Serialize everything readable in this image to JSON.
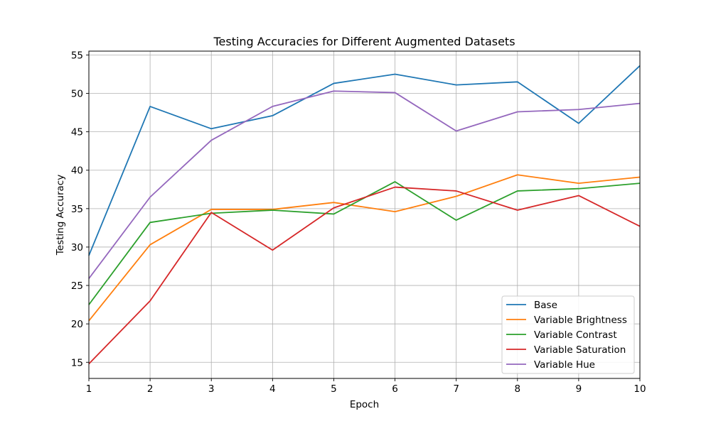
{
  "chart_data": {
    "type": "line",
    "title": "Testing Accuracies for Different Augmented Datasets",
    "xlabel": "Epoch",
    "ylabel": "Testing Accuracy",
    "x": [
      1,
      2,
      3,
      4,
      5,
      6,
      7,
      8,
      9,
      10
    ],
    "xlim": [
      1,
      10
    ],
    "ylim": [
      12.9,
      55.5
    ],
    "xticks": [
      1,
      2,
      3,
      4,
      5,
      6,
      7,
      8,
      9,
      10
    ],
    "yticks": [
      15,
      20,
      25,
      30,
      35,
      40,
      45,
      50,
      55
    ],
    "grid": true,
    "legend_position": "lower-right",
    "series": [
      {
        "name": "Base",
        "color": "#1f77b4",
        "values": [
          28.9,
          48.3,
          45.4,
          47.1,
          51.3,
          52.5,
          51.1,
          51.5,
          46.1,
          53.6
        ]
      },
      {
        "name": "Variable Brightness",
        "color": "#ff7f0e",
        "values": [
          20.4,
          30.3,
          34.9,
          34.9,
          35.8,
          34.6,
          36.6,
          39.4,
          38.3,
          39.1
        ]
      },
      {
        "name": "Variable Contrast",
        "color": "#2ca02c",
        "values": [
          22.5,
          33.2,
          34.4,
          34.8,
          34.3,
          38.5,
          33.5,
          37.3,
          37.6,
          38.3
        ]
      },
      {
        "name": "Variable Saturation",
        "color": "#d62728",
        "values": [
          14.8,
          23.0,
          34.5,
          29.6,
          35.1,
          37.8,
          37.3,
          34.8,
          36.7,
          32.7
        ]
      },
      {
        "name": "Variable Hue",
        "color": "#9467bd",
        "values": [
          25.9,
          36.5,
          43.9,
          48.3,
          50.3,
          50.1,
          45.1,
          47.6,
          47.9,
          48.7
        ]
      }
    ]
  }
}
